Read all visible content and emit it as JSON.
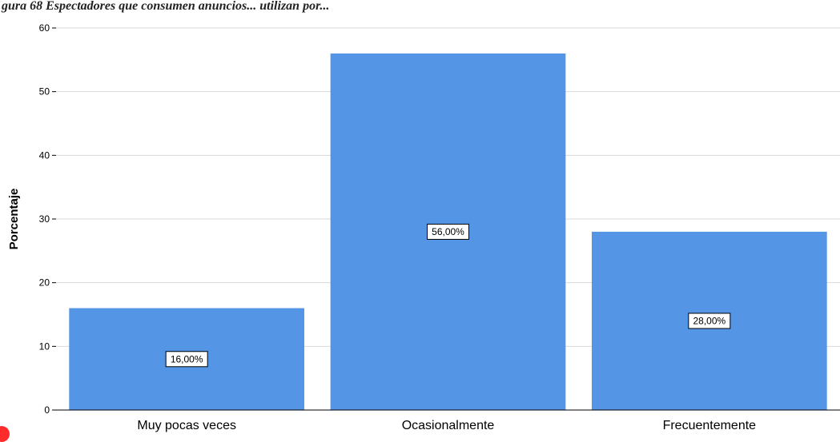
{
  "caption": "gura 68 Espectadores que consumen anuncios... utilizan por...",
  "chart_data": {
    "type": "bar",
    "title": "",
    "xlabel": "",
    "ylabel": "Porcentaje",
    "categories": [
      "Muy pocas veces",
      "Ocasionalmente",
      "Frecuentemente"
    ],
    "values": [
      16,
      56,
      28
    ],
    "data_labels": [
      "16,00%",
      "56,00%",
      "28,00%"
    ],
    "ylim": [
      0,
      60
    ],
    "yticks": [
      "0",
      "10",
      "20",
      "30",
      "40",
      "50",
      "60"
    ],
    "grid": true,
    "bar_color": "#5595e6",
    "grid_color": "#d9d9d9"
  }
}
